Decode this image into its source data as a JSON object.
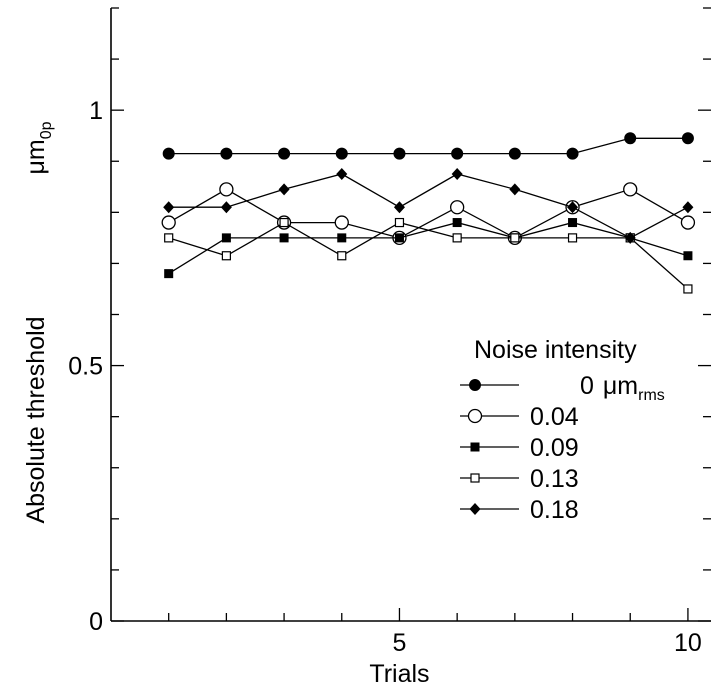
{
  "chart_data": {
    "type": "line",
    "xlabel": "Trials",
    "ylabel": "Absolute threshold",
    "yunit": "μm",
    "yunit_sub": "0p",
    "xlim": [
      0,
      10.4
    ],
    "ylim": [
      0,
      1.2
    ],
    "xticks": [
      5,
      10
    ],
    "yticks": [
      0,
      0.5,
      1
    ],
    "ytick_labels": [
      "0",
      "0.5",
      "1"
    ],
    "xtick_labels": [
      "5",
      "10"
    ],
    "x": [
      1,
      2,
      3,
      4,
      5,
      6,
      7,
      8,
      9,
      10
    ],
    "legend": {
      "title": "Noise intensity",
      "unit": "μm",
      "unit_sub": "rms"
    },
    "series": [
      {
        "name": "0",
        "marker": "filled-circle",
        "values": [
          0.915,
          0.915,
          0.915,
          0.915,
          0.915,
          0.915,
          0.915,
          0.915,
          0.945,
          0.945
        ]
      },
      {
        "name": "0.04",
        "marker": "open-circle",
        "values": [
          0.78,
          0.845,
          0.78,
          0.78,
          0.75,
          0.81,
          0.75,
          0.81,
          0.845,
          0.78
        ]
      },
      {
        "name": "0.09",
        "marker": "filled-square",
        "values": [
          0.68,
          0.75,
          0.75,
          0.75,
          0.75,
          0.78,
          0.75,
          0.78,
          0.75,
          0.715
        ]
      },
      {
        "name": "0.13",
        "marker": "open-square",
        "values": [
          0.75,
          0.715,
          0.78,
          0.715,
          0.78,
          0.75,
          0.75,
          0.75,
          0.75,
          0.65
        ]
      },
      {
        "name": "0.18",
        "marker": "filled-diamond",
        "values": [
          0.81,
          0.81,
          0.845,
          0.875,
          0.81,
          0.875,
          0.845,
          0.81,
          0.75,
          0.81
        ]
      }
    ]
  }
}
